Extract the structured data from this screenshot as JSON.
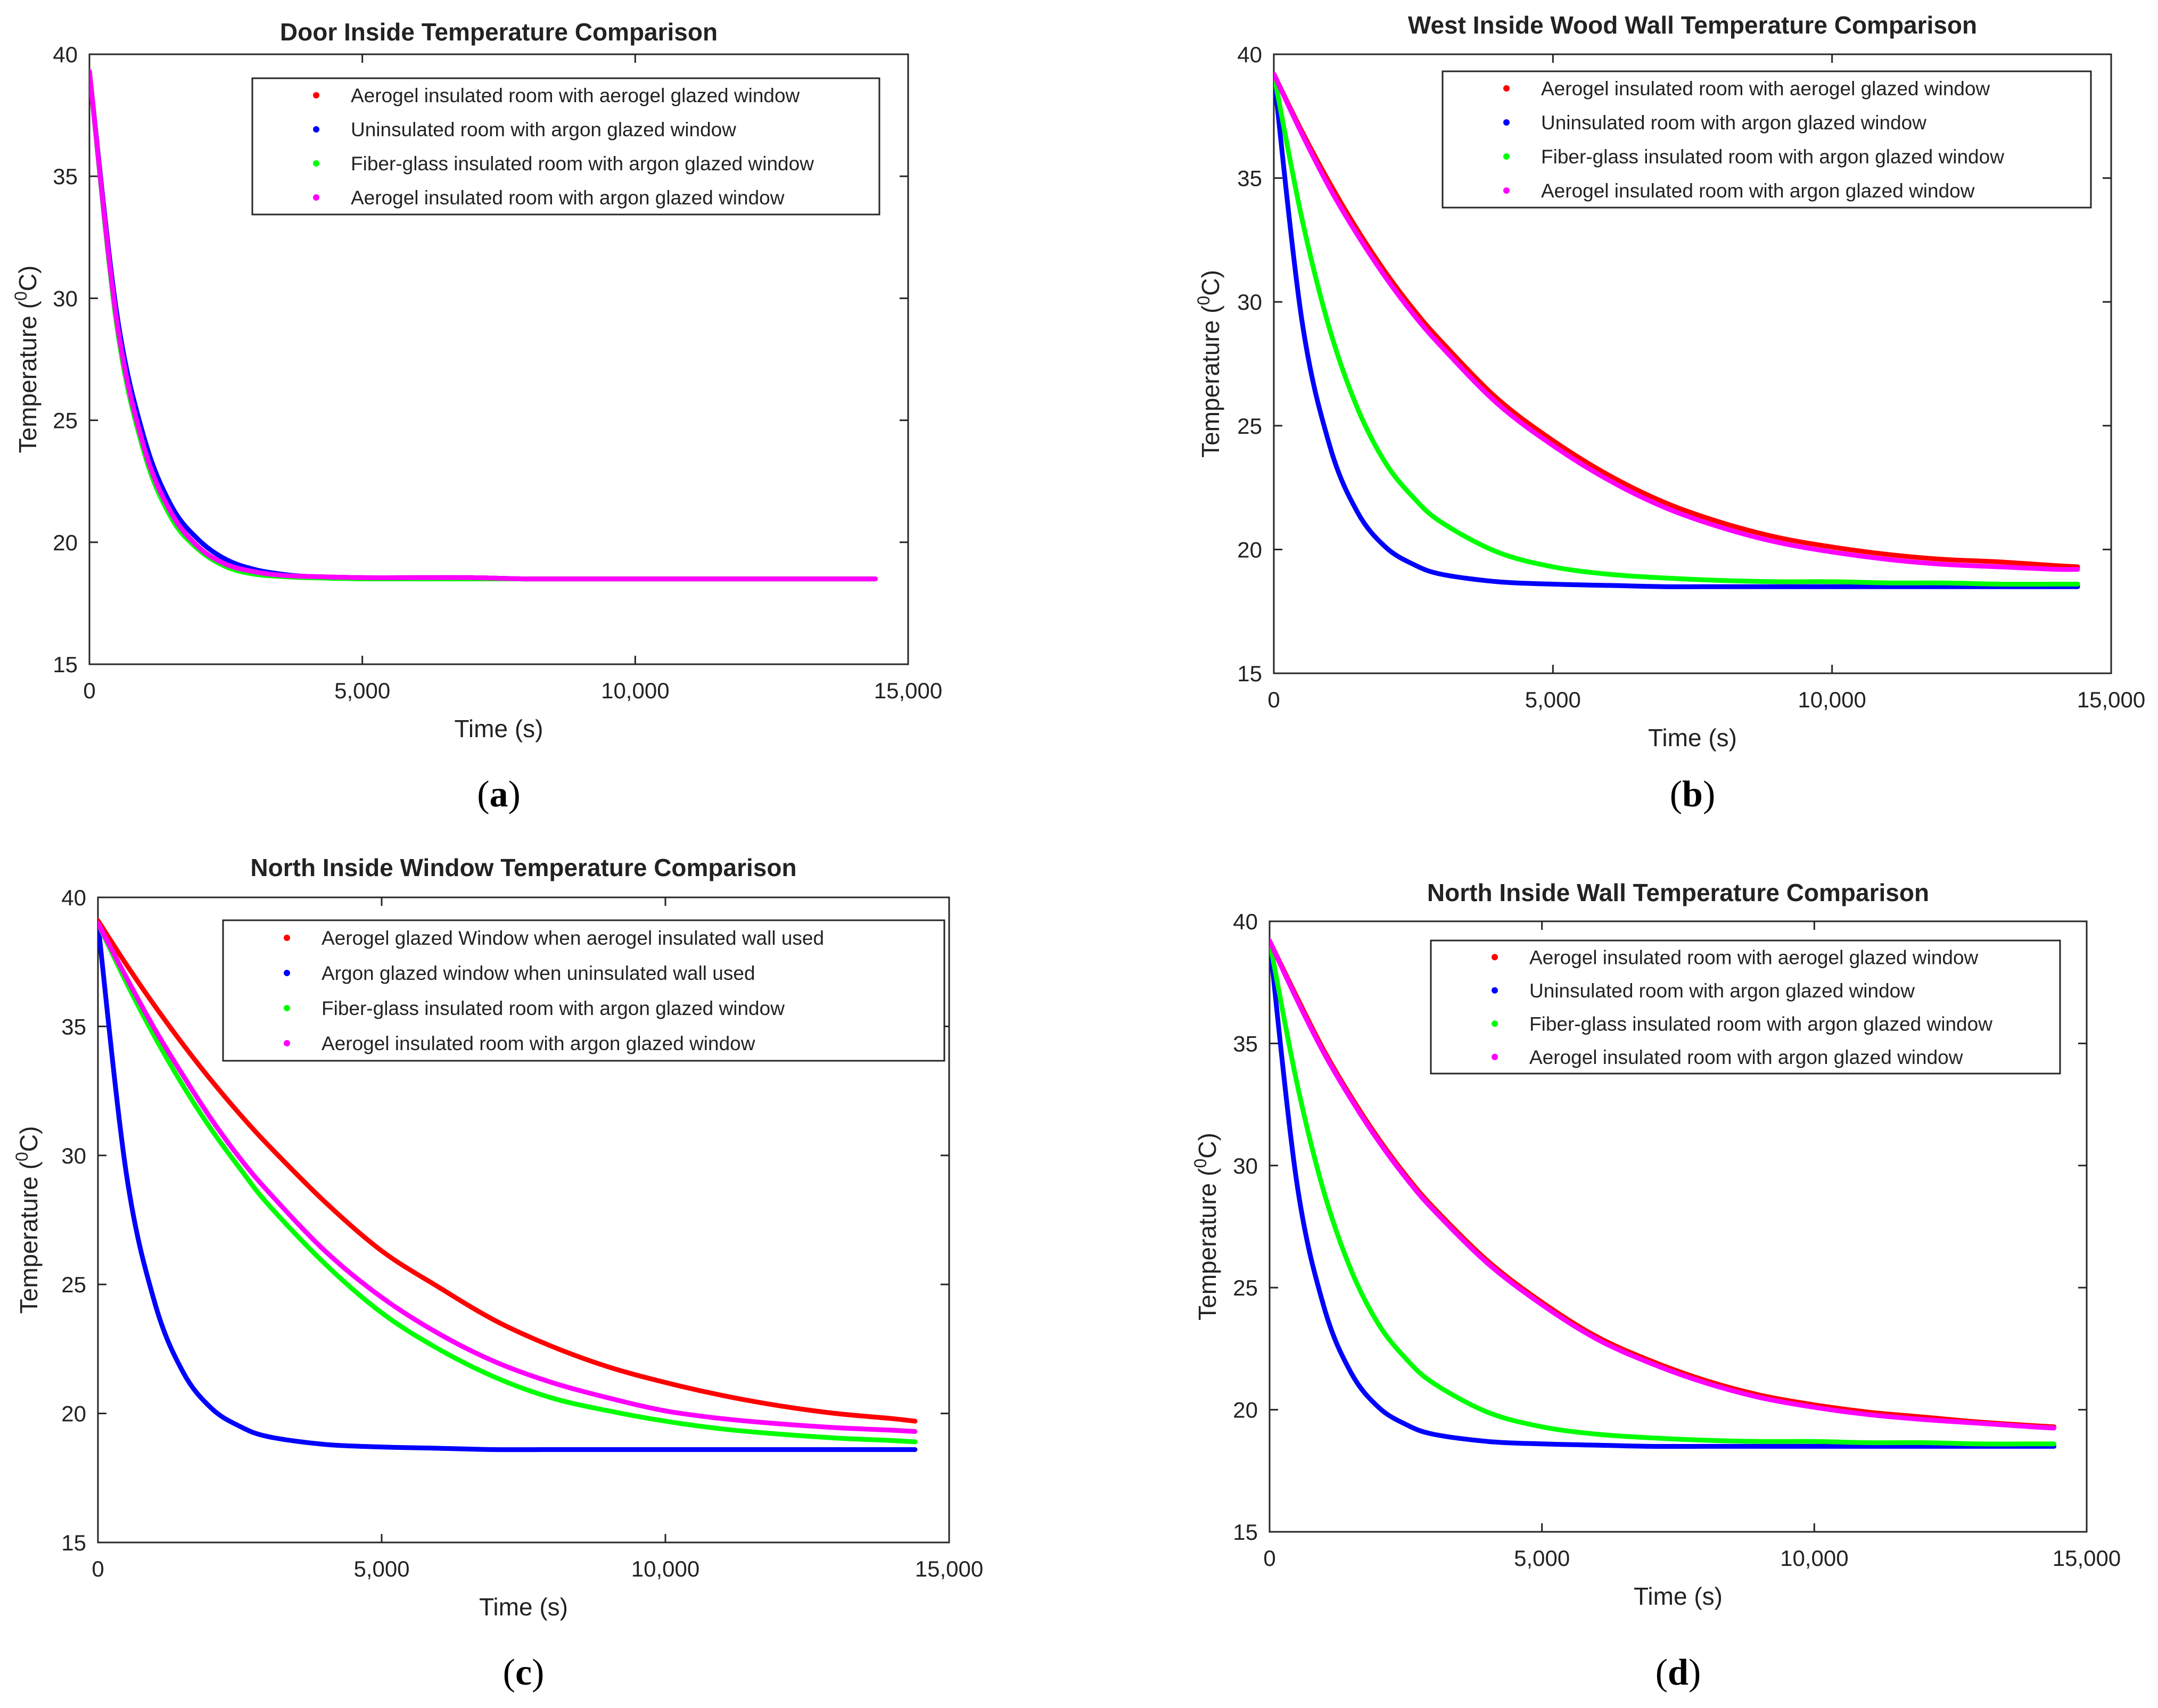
{
  "chart_data": [
    {
      "id": "a",
      "type": "line",
      "title": "Door Inside Temperature Comparison",
      "xlabel": "Time (s)",
      "ylabel": "Temperature (",
      "ylabel_sup": "0",
      "ylabel_end": "C)",
      "caption_letter": "a",
      "xlim": [
        0,
        15000
      ],
      "ylim": [
        15,
        40
      ],
      "xticks": [
        0,
        5000,
        10000,
        15000
      ],
      "xtick_labels": [
        "0",
        "5,000",
        "10,000",
        "15,000"
      ],
      "yticks": [
        15,
        20,
        25,
        30,
        35,
        40
      ],
      "ytick_labels": [
        "15",
        "20",
        "25",
        "30",
        "35",
        "40"
      ],
      "legend_position": "top-right",
      "x": [
        0,
        500,
        1000,
        1500,
        2000,
        2500,
        3000,
        3500,
        4000,
        5000,
        6000,
        7000,
        8000,
        9000,
        10000,
        11000,
        12000,
        13000,
        14000,
        14400
      ],
      "series": [
        {
          "name": "Aerogel insulated room with aerogel glazed window",
          "color": "#ff0000",
          "values": [
            39.3,
            29.1,
            23.9,
            21.2,
            19.8,
            19.1,
            18.8,
            18.65,
            18.6,
            18.55,
            18.55,
            18.55,
            18.5,
            18.5,
            18.5,
            18.5,
            18.5,
            18.5,
            18.5,
            18.5
          ]
        },
        {
          "name": "Uninsulated room with argon glazed window",
          "color": "#0000ff",
          "values": [
            39.3,
            29.4,
            24.3,
            21.5,
            20.1,
            19.3,
            18.9,
            18.7,
            18.6,
            18.55,
            18.55,
            18.55,
            18.5,
            18.5,
            18.5,
            18.5,
            18.5,
            18.5,
            18.5,
            18.5
          ]
        },
        {
          "name": "Fiber-glass insulated room with argon glazed window",
          "color": "#00ff00",
          "values": [
            39.3,
            28.9,
            23.7,
            21.0,
            19.7,
            19.0,
            18.7,
            18.6,
            18.55,
            18.5,
            18.5,
            18.5,
            18.5,
            18.5,
            18.5,
            18.5,
            18.5,
            18.5,
            18.5,
            18.5
          ]
        },
        {
          "name": "Aerogel insulated room with argon glazed window",
          "color": "#ff00ff",
          "values": [
            39.3,
            29.1,
            23.9,
            21.2,
            19.8,
            19.1,
            18.8,
            18.65,
            18.6,
            18.55,
            18.55,
            18.55,
            18.5,
            18.5,
            18.5,
            18.5,
            18.5,
            18.5,
            18.5,
            18.5
          ]
        }
      ]
    },
    {
      "id": "b",
      "type": "line",
      "title": "West Inside Wood Wall Temperature Comparison",
      "xlabel": "Time (s)",
      "ylabel": "Temperature (",
      "ylabel_sup": "0",
      "ylabel_end": "C)",
      "caption_letter": "b",
      "xlim": [
        0,
        15000
      ],
      "ylim": [
        15,
        40
      ],
      "xticks": [
        0,
        5000,
        10000,
        15000
      ],
      "xtick_labels": [
        "0",
        "5,000",
        "10,000",
        "15,000"
      ],
      "yticks": [
        15,
        20,
        25,
        30,
        35,
        40
      ],
      "ytick_labels": [
        "15",
        "20",
        "25",
        "30",
        "35",
        "40"
      ],
      "legend_position": "top-right",
      "x": [
        0,
        500,
        1000,
        1500,
        2000,
        2500,
        3000,
        4000,
        5000,
        6000,
        7000,
        8000,
        9000,
        10000,
        11000,
        12000,
        13000,
        14000,
        14400
      ],
      "series": [
        {
          "name": "Aerogel insulated room with aerogel glazed window",
          "color": "#ff0000",
          "values": [
            39.2,
            36.9,
            34.8,
            32.9,
            31.2,
            29.7,
            28.4,
            26.1,
            24.4,
            23.0,
            21.9,
            21.1,
            20.5,
            20.1,
            19.8,
            19.6,
            19.5,
            19.35,
            19.3
          ]
        },
        {
          "name": "Uninsulated room with argon glazed window",
          "color": "#0000ff",
          "values": [
            39.2,
            29.3,
            24.2,
            21.5,
            20.1,
            19.4,
            19.0,
            18.7,
            18.6,
            18.55,
            18.5,
            18.5,
            18.5,
            18.5,
            18.5,
            18.5,
            18.5,
            18.5,
            18.5
          ]
        },
        {
          "name": "Fiber-glass insulated room with argon glazed window",
          "color": "#00ff00",
          "values": [
            39.2,
            33.4,
            28.9,
            25.7,
            23.5,
            22.1,
            21.1,
            19.9,
            19.3,
            19.0,
            18.85,
            18.75,
            18.7,
            18.7,
            18.65,
            18.65,
            18.6,
            18.6,
            18.6
          ]
        },
        {
          "name": "Aerogel insulated room with argon glazed window",
          "color": "#ff00ff",
          "values": [
            39.2,
            36.8,
            34.6,
            32.7,
            31.0,
            29.5,
            28.2,
            25.9,
            24.2,
            22.8,
            21.7,
            20.9,
            20.3,
            19.9,
            19.6,
            19.4,
            19.3,
            19.2,
            19.2
          ]
        }
      ]
    },
    {
      "id": "c",
      "type": "line",
      "title": "North Inside Window Temperature Comparison",
      "xlabel": "Time (s)",
      "ylabel": "Temperature (",
      "ylabel_sup": "0",
      "ylabel_end": "C)",
      "caption_letter": "c",
      "xlim": [
        0,
        15000
      ],
      "ylim": [
        15,
        40
      ],
      "xticks": [
        0,
        5000,
        10000,
        15000
      ],
      "xtick_labels": [
        "0",
        "5,000",
        "10,000",
        "15,000"
      ],
      "yticks": [
        15,
        20,
        25,
        30,
        35,
        40
      ],
      "ytick_labels": [
        "15",
        "20",
        "25",
        "30",
        "35",
        "40"
      ],
      "legend_position": "top-right",
      "x": [
        0,
        500,
        1000,
        1500,
        2000,
        2500,
        3000,
        4000,
        5000,
        6000,
        7000,
        8000,
        9000,
        10000,
        11000,
        12000,
        13000,
        14000,
        14400
      ],
      "series": [
        {
          "name": "Aerogel glazed Window when aerogel insulated wall used",
          "color": "#ff0000",
          "values": [
            39.1,
            37.4,
            35.8,
            34.3,
            32.9,
            31.6,
            30.4,
            28.2,
            26.3,
            24.9,
            23.6,
            22.6,
            21.8,
            21.2,
            20.7,
            20.3,
            20.0,
            19.8,
            19.7
          ]
        },
        {
          "name": "Argon glazed window when uninsulated wall used",
          "color": "#0000ff",
          "values": [
            39.0,
            29.3,
            24.3,
            21.6,
            20.2,
            19.5,
            19.1,
            18.8,
            18.7,
            18.65,
            18.6,
            18.6,
            18.6,
            18.6,
            18.6,
            18.6,
            18.6,
            18.6,
            18.6
          ]
        },
        {
          "name": "Fiber-glass insulated room with argon glazed window",
          "color": "#00ff00",
          "values": [
            39.0,
            36.7,
            34.6,
            32.7,
            31.0,
            29.5,
            28.1,
            25.8,
            23.9,
            22.5,
            21.4,
            20.6,
            20.1,
            19.7,
            19.4,
            19.2,
            19.05,
            18.95,
            18.9
          ]
        },
        {
          "name": "Aerogel insulated room with argon glazed window",
          "color": "#ff00ff",
          "values": [
            39.0,
            36.9,
            34.9,
            33.1,
            31.4,
            29.9,
            28.6,
            26.3,
            24.5,
            23.1,
            22.0,
            21.2,
            20.6,
            20.1,
            19.8,
            19.6,
            19.45,
            19.35,
            19.3
          ]
        }
      ]
    },
    {
      "id": "d",
      "type": "line",
      "title": "North Inside Wall Temperature Comparison",
      "xlabel": "Time (s)",
      "ylabel": "Temperature (",
      "ylabel_sup": "0",
      "ylabel_end": "C)",
      "caption_letter": "d",
      "xlim": [
        0,
        15000
      ],
      "ylim": [
        15,
        40
      ],
      "xticks": [
        0,
        5000,
        10000,
        15000
      ],
      "xtick_labels": [
        "0",
        "5,000",
        "10,000",
        "15,000"
      ],
      "yticks": [
        15,
        20,
        25,
        30,
        35,
        40
      ],
      "ytick_labels": [
        "15",
        "20",
        "25",
        "30",
        "35",
        "40"
      ],
      "legend_position": "top-right",
      "x": [
        0,
        500,
        1000,
        1500,
        2000,
        2500,
        3000,
        4000,
        5000,
        6000,
        7000,
        8000,
        9000,
        10000,
        11000,
        12000,
        13000,
        14000,
        14400
      ],
      "series": [
        {
          "name": "Aerogel insulated room with aerogel glazed window",
          "color": "#ff0000",
          "values": [
            39.2,
            36.9,
            34.7,
            32.8,
            31.1,
            29.6,
            28.3,
            26.1,
            24.4,
            23.0,
            22.0,
            21.2,
            20.6,
            20.2,
            19.9,
            19.7,
            19.5,
            19.35,
            19.3
          ]
        },
        {
          "name": "Uninsulated room with argon glazed window",
          "color": "#0000ff",
          "values": [
            39.2,
            29.3,
            24.2,
            21.5,
            20.1,
            19.4,
            19.0,
            18.7,
            18.6,
            18.55,
            18.5,
            18.5,
            18.5,
            18.5,
            18.5,
            18.5,
            18.5,
            18.5,
            18.5
          ]
        },
        {
          "name": "Fiber-glass insulated room with argon glazed window",
          "color": "#00ff00",
          "values": [
            39.2,
            33.4,
            28.9,
            25.7,
            23.5,
            22.1,
            21.1,
            19.9,
            19.3,
            19.0,
            18.85,
            18.75,
            18.7,
            18.7,
            18.65,
            18.65,
            18.6,
            18.6,
            18.6
          ]
        },
        {
          "name": "Aerogel insulated room with argon glazed window",
          "color": "#ff00ff",
          "values": [
            39.2,
            36.8,
            34.6,
            32.7,
            31.0,
            29.5,
            28.2,
            26.0,
            24.3,
            22.9,
            21.9,
            21.1,
            20.5,
            20.1,
            19.8,
            19.6,
            19.45,
            19.3,
            19.25
          ]
        }
      ]
    }
  ]
}
